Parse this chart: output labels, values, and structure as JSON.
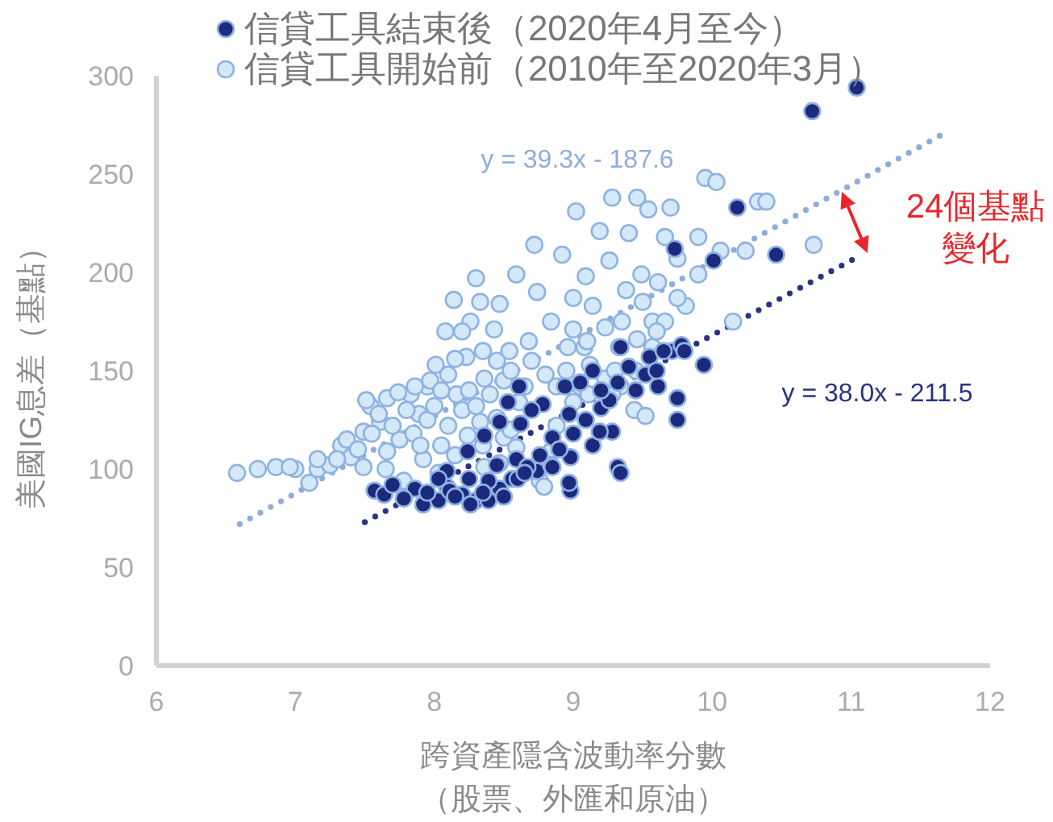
{
  "chart_data": {
    "type": "scatter",
    "xlabel": "跨資產隱含波動率分數（股票、外匯和原油）",
    "ylabel": "美國IG息差（基點）",
    "xlim": [
      6,
      12
    ],
    "xticks": [
      6,
      7,
      8,
      9,
      10,
      11,
      12
    ],
    "ylim": [
      0,
      300
    ],
    "yticks": [
      0,
      50,
      100,
      150,
      200,
      250,
      300
    ],
    "legend": "top",
    "marker": "circle",
    "series": [
      {
        "name": "信貸工具結束後（2020年4月至今）",
        "color": "#1c2a7e",
        "x": [
          7.57,
          7.64,
          7.86,
          7.92,
          8.03,
          8.09,
          8.2,
          8.3,
          8.39,
          8.47,
          8.39,
          8.56,
          8.59,
          8.45,
          8.09,
          8.03,
          7.78,
          8.26,
          8.11,
          8.6,
          8.74,
          8.84,
          8.98,
          8.98,
          9.32,
          9.34,
          8.36,
          8.47,
          8.24,
          8.53,
          8.61,
          8.62,
          8.67,
          8.76,
          8.85,
          8.97,
          8.85,
          8.78,
          8.97,
          9.09,
          9.05,
          9.2,
          9.26,
          9.32,
          9.4,
          9.55,
          9.52,
          9.61,
          9.75,
          9.75,
          9.71,
          9.78,
          9.94,
          9.14,
          9.28,
          9.19,
          10.01,
          9.73,
          10.18,
          10.46,
          10.72,
          11.04,
          8.7,
          8.94,
          9.14,
          9.34,
          7.7,
          7.95,
          8.15,
          8.35,
          8.5,
          8.25,
          8.65,
          8.9,
          9.0,
          9.2,
          9.45,
          9.6,
          9.65,
          9.8
        ],
        "values": [
          89,
          87,
          90,
          82,
          84,
          91,
          87,
          84,
          84,
          90,
          94,
          95,
          105,
          102,
          99,
          95,
          85,
          82,
          89,
          95,
          99,
          102,
          106,
          89,
          101,
          98,
          117,
          124,
          109,
          134,
          142,
          123,
          101,
          107,
          101,
          93,
          116,
          133,
          128,
          125,
          144,
          131,
          135,
          144,
          152,
          157,
          148,
          142,
          136,
          125,
          160,
          163,
          153,
          112,
          119,
          119,
          206,
          212,
          233,
          209,
          282,
          294,
          130,
          142,
          150,
          162,
          92,
          88,
          86,
          88,
          86,
          95,
          98,
          110,
          118,
          140,
          140,
          150,
          160,
          160
        ]
      },
      {
        "name": "信貸工具開始前（2010年至2020年3月）",
        "color": "#d3e9f9",
        "x": [
          6.58,
          6.73,
          6.86,
          7.0,
          7.1,
          7.16,
          7.25,
          7.33,
          7.4,
          7.49,
          7.54,
          7.61,
          7.66,
          7.75,
          7.83,
          7.89,
          7.95,
          8.01,
          8.08,
          8.14,
          8.16,
          8.23,
          8.26,
          8.3,
          8.33,
          8.36,
          8.43,
          8.47,
          8.5,
          8.54,
          8.59,
          8.61,
          8.68,
          8.72,
          8.74,
          8.8,
          8.84,
          8.88,
          8.92,
          8.96,
          9.0,
          9.02,
          9.05,
          9.09,
          9.12,
          9.14,
          9.19,
          9.23,
          9.26,
          9.28,
          9.33,
          9.38,
          9.4,
          9.44,
          9.46,
          9.49,
          9.54,
          9.57,
          9.61,
          9.66,
          9.7,
          9.75,
          9.81,
          9.9,
          9.9,
          9.95,
          10.03,
          10.06,
          10.15,
          10.24,
          10.33,
          10.39,
          10.73,
          7.49,
          7.66,
          7.78,
          7.92,
          8.03,
          8.15,
          8.24,
          8.36,
          8.47,
          8.59,
          8.76,
          8.84,
          8.79,
          7.74,
          7.86,
          7.97,
          8.1,
          8.15,
          8.33,
          8.2,
          7.51,
          7.37,
          7.16,
          6.96,
          8.88,
          9.0,
          9.11,
          9.23,
          9.34,
          9.46,
          9.57,
          9.28,
          9.52,
          9.66,
          9.75,
          9.0,
          9.08,
          7.3,
          7.45,
          7.55,
          7.6,
          7.7,
          7.8,
          7.85,
          7.95,
          8.0,
          8.05,
          8.1,
          8.2,
          8.25,
          8.3,
          8.4,
          8.45,
          8.5,
          8.55,
          8.65,
          8.7,
          8.45,
          8.35,
          7.65,
          7.9,
          8.05,
          8.35,
          8.55,
          8.95,
          9.1,
          9.3,
          9.2,
          9.35,
          9.5,
          9.6,
          9.45
        ],
        "values": [
          98,
          100,
          101,
          100,
          93,
          100,
          102,
          112,
          106,
          119,
          132,
          124,
          136,
          115,
          138,
          128,
          142,
          153,
          170,
          186,
          138,
          157,
          175,
          197,
          124,
          146,
          171,
          184,
          116,
          160,
          199,
          134,
          165,
          214,
          190,
          148,
          175,
          122,
          209,
          162,
          187,
          231,
          142,
          198,
          153,
          183,
          221,
          172,
          206,
          238,
          162,
          191,
          220,
          130,
          238,
          199,
          232,
          162,
          195,
          218,
          233,
          207,
          183,
          199,
          218,
          248,
          246,
          211,
          175,
          211,
          236,
          236,
          214,
          101,
          109,
          94,
          105,
          98,
          107,
          117,
          101,
          103,
          111,
          94,
          109,
          91,
          139,
          142,
          145,
          148,
          156,
          185,
          170,
          135,
          115,
          105,
          101,
          142,
          134,
          138,
          146,
          142,
          166,
          175,
          138,
          127,
          175,
          187,
          171,
          162,
          105,
          110,
          118,
          128,
          122,
          130,
          118,
          125,
          132,
          140,
          122,
          130,
          140,
          132,
          138,
          126,
          145,
          150,
          142,
          155,
          155,
          160,
          100,
          112,
          112,
          112,
          120,
          150,
          165,
          150,
          140,
          175,
          185,
          170,
          150
        ]
      },
      {
        "type": "line",
        "color": "#8eadd9",
        "marker": "none",
        "line_style": "dotted",
        "x": [
          6.6,
          11.65
        ],
        "values": [
          72,
          270
        ]
      },
      {
        "type": "line",
        "color": "#2a3282",
        "marker": "none",
        "line_style": "dotted",
        "x": [
          7.5,
          11.05
        ],
        "values": [
          73,
          208
        ]
      }
    ],
    "annotations": [
      "y = 39.3x - 187.6",
      "y = 38.0x - 211.5",
      "24個基點變化"
    ]
  }
}
